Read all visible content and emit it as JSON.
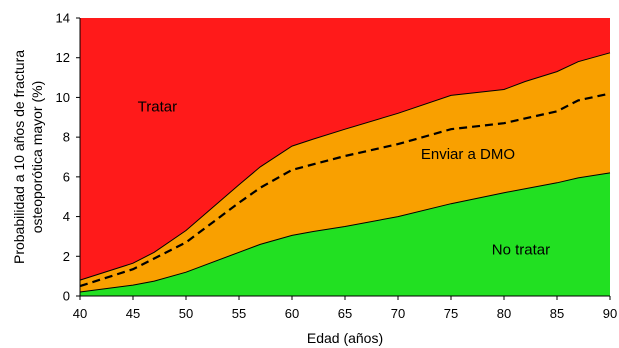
{
  "chart_data": {
    "type": "area",
    "x": [
      40,
      45,
      47,
      50,
      55,
      57,
      60,
      62,
      65,
      70,
      75,
      80,
      82,
      85,
      87,
      90
    ],
    "series": [
      {
        "name": "No tratar",
        "values": [
          0.2,
          0.55,
          0.75,
          1.2,
          2.2,
          2.6,
          3.05,
          3.25,
          3.5,
          4.0,
          4.65,
          5.2,
          5.4,
          5.7,
          5.95,
          6.2
        ]
      },
      {
        "name": "Enviar a DMO",
        "values": [
          0.8,
          1.65,
          2.2,
          3.3,
          5.6,
          6.5,
          7.55,
          7.9,
          8.4,
          9.2,
          10.1,
          10.4,
          10.8,
          11.3,
          11.8,
          12.25
        ]
      },
      {
        "name": "Tratar",
        "values": [
          14,
          14,
          14,
          14,
          14,
          14,
          14,
          14,
          14,
          14,
          14,
          14,
          14,
          14,
          14,
          14
        ]
      }
    ],
    "dashed_line": {
      "x": [
        40,
        45,
        50,
        55,
        57,
        60,
        65,
        70,
        75,
        80,
        85,
        87,
        90
      ],
      "values": [
        0.5,
        1.35,
        2.7,
        4.7,
        5.45,
        6.35,
        7.05,
        7.65,
        8.4,
        8.7,
        9.3,
        9.85,
        10.2
      ]
    },
    "region_labels": [
      {
        "text": "Tratar",
        "x": 47.3,
        "y": 9.3
      },
      {
        "text": "Enviar a DMO",
        "x": 76.6,
        "y": 6.9
      },
      {
        "text": "No tratar",
        "x": 81.6,
        "y": 2.1
      }
    ],
    "xlabel": "Edad (años)",
    "ylabel": [
      "Probabilidad a 10 años de fractura",
      "osteoporótica mayor (%)"
    ],
    "xlim": [
      40,
      90
    ],
    "ylim": [
      0,
      14
    ],
    "xticks": [
      40,
      45,
      50,
      55,
      60,
      65,
      70,
      75,
      80,
      85,
      90
    ],
    "yticks": [
      0,
      2,
      4,
      6,
      8,
      10,
      12,
      14
    ],
    "colors": {
      "tratar": "#ff1a1a",
      "enviar": "#f9a000",
      "no_tratar": "#22e022",
      "dashed": "#000000"
    },
    "grid": false,
    "legend": "none"
  }
}
